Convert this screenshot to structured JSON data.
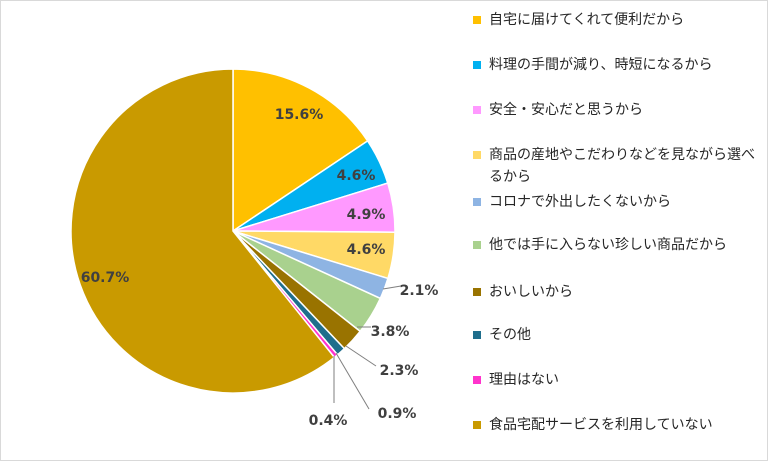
{
  "chart_data": {
    "type": "pie",
    "title": "",
    "start_angle_deg": 0,
    "direction": "clockwise",
    "slices": [
      {
        "label": "自宅に届けてくれて便利だから",
        "value": 15.6,
        "value_label": "15.6%",
        "color": "#ffc000"
      },
      {
        "label": "料理の手間が減り、時短になるから",
        "value": 4.6,
        "value_label": "4.6%",
        "color": "#00b0f0"
      },
      {
        "label": "安全・安心だと思うから",
        "value": 4.9,
        "value_label": "4.9%",
        "color": "#ff99ff"
      },
      {
        "label": "商品の産地やこだわりなどを見ながら選べるから",
        "value": 4.6,
        "value_label": "4.6%",
        "color": "#ffd966"
      },
      {
        "label": "コロナで外出したくないから",
        "value": 2.1,
        "value_label": "2.1%",
        "color": "#8eb4e3"
      },
      {
        "label": "他では手に入らない珍しい商品だから",
        "value": 3.8,
        "value_label": "3.8%",
        "color": "#a9d18e"
      },
      {
        "label": "おいしいから",
        "value": 2.3,
        "value_label": "2.3%",
        "color": "#997300"
      },
      {
        "label": "その他",
        "value": 0.9,
        "value_label": "0.9%",
        "color": "#1f6e8c"
      },
      {
        "label": "理由はない",
        "value": 0.4,
        "value_label": "0.4%",
        "color": "#ff33cc"
      },
      {
        "label": "食品宅配サービスを利用していない",
        "value": 60.7,
        "value_label": "60.7%",
        "color": "#c99a00"
      }
    ],
    "legend_position": "right"
  }
}
